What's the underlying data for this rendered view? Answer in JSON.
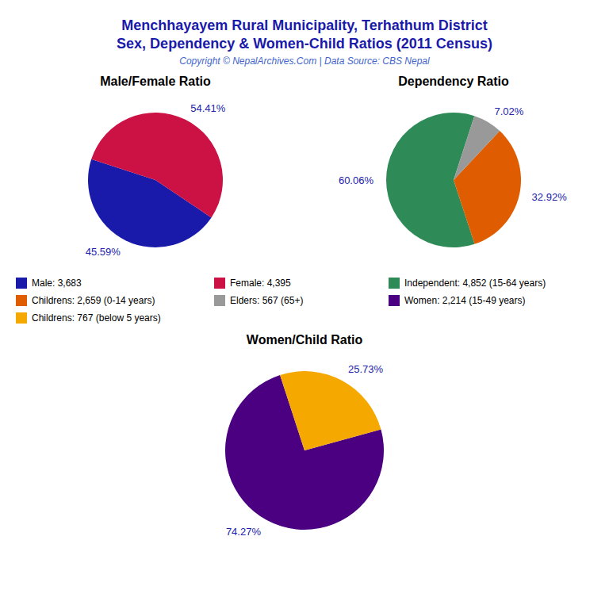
{
  "title": "Menchhayayem Rural Municipality, Terhathum District",
  "subtitle": "Sex, Dependency & Women-Child Ratios (2011 Census)",
  "annotations": [
    "Copyright © NepalArchives.Com | Data Source: CBS Nepal"
  ],
  "chart_data": [
    {
      "type": "pie",
      "title": "Male/Female Ratio",
      "categories": [
        "Male: 3,683",
        "Female: 4,395"
      ],
      "values": [
        45.59,
        54.41
      ],
      "value_labels": [
        "45.59%",
        "54.41%"
      ],
      "colors": [
        "#1a1aaa",
        "#cc1144"
      ],
      "data_labels": true,
      "legend": "bottom"
    },
    {
      "type": "pie",
      "title": "Dependency Ratio",
      "categories": [
        "Independent: 4,852 (15-64 years)",
        "Childrens: 2,659 (0-14 years)",
        "Elders: 567 (65+)"
      ],
      "values": [
        60.06,
        32.92,
        7.02
      ],
      "value_labels": [
        "60.06%",
        "32.92%",
        "7.02%"
      ],
      "colors": [
        "#2e8b57",
        "#e05c00",
        "#999999"
      ],
      "data_labels": true,
      "legend": "bottom"
    },
    {
      "type": "pie",
      "title": "Women/Child Ratio",
      "categories": [
        "Women: 2,214 (15-49 years)",
        "Childrens: 767 (below 5 years)"
      ],
      "values": [
        74.27,
        25.73
      ],
      "value_labels": [
        "74.27%",
        "25.73%"
      ],
      "colors": [
        "#4b0082",
        "#f5a800"
      ],
      "data_labels": true,
      "legend": "top"
    }
  ]
}
